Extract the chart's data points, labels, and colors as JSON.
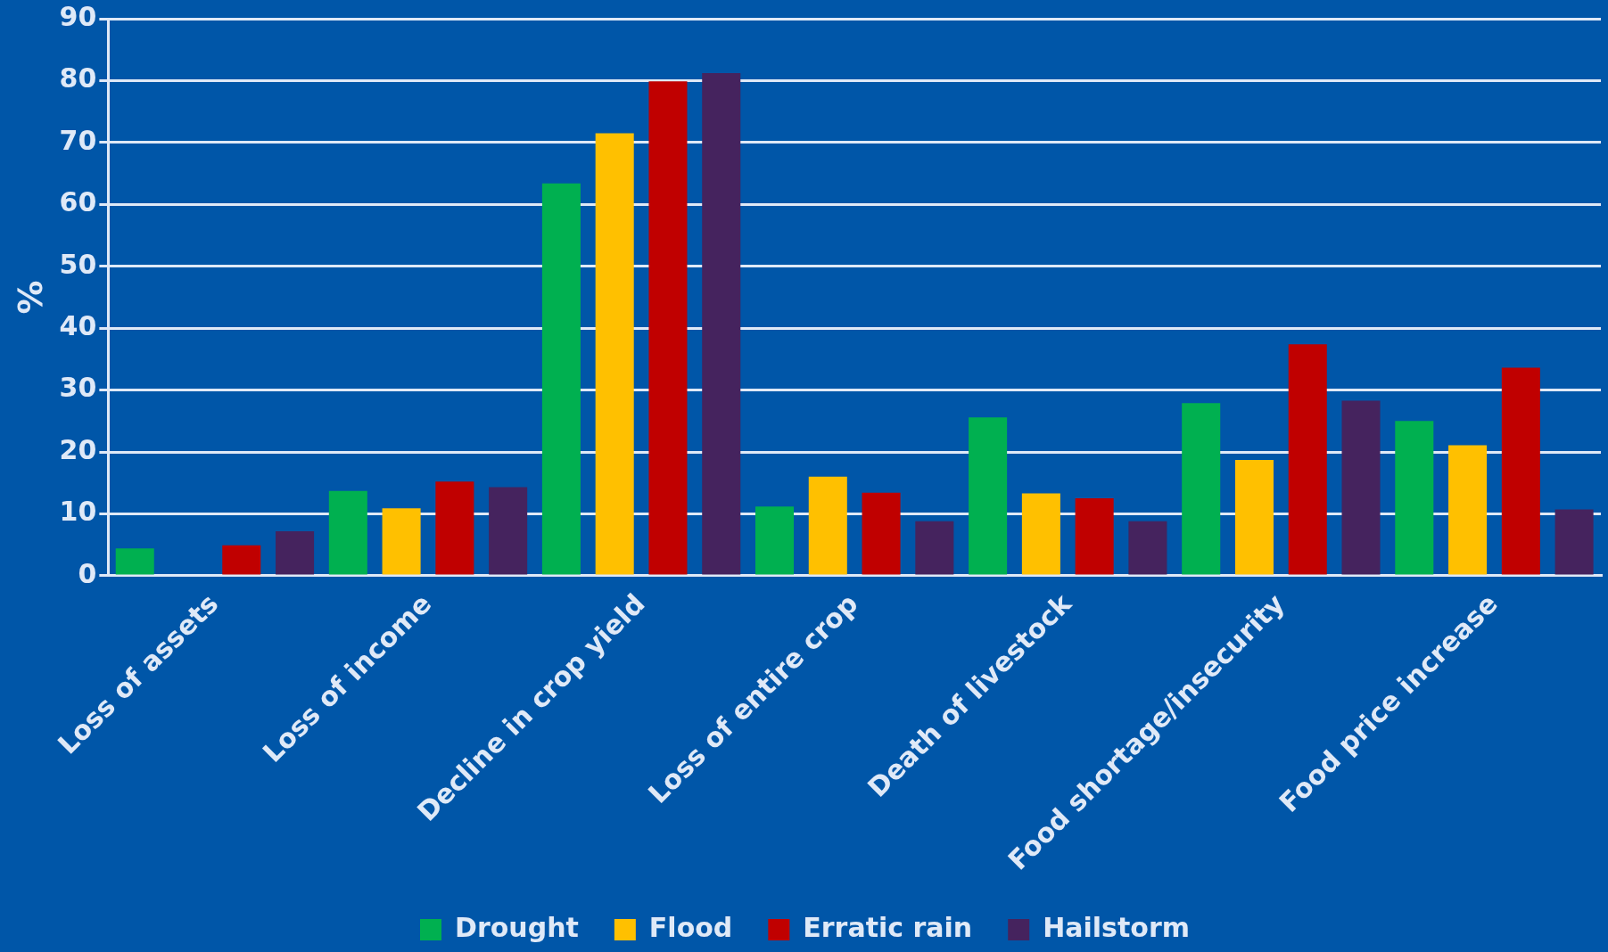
{
  "chart_data": {
    "type": "bar",
    "ylabel": "%",
    "categories": [
      "Loss of assets",
      "Loss of income",
      "Decline in crop yield",
      "Loss of entire crop",
      "Death of livestock",
      "Food shortage/insecurity",
      "Food price increase"
    ],
    "series": [
      {
        "name": "Drought",
        "color": "#00b050",
        "values": [
          4.4,
          13.7,
          63.4,
          11.2,
          25.6,
          27.9,
          25.0
        ]
      },
      {
        "name": "Flood",
        "color": "#ffc000",
        "values": [
          0,
          10.9,
          71.5,
          16.0,
          13.3,
          18.7,
          21.1
        ]
      },
      {
        "name": "Erratic rain",
        "color": "#c00000",
        "values": [
          4.9,
          15.2,
          79.9,
          13.4,
          12.5,
          37.4,
          33.6
        ]
      },
      {
        "name": "Hailstorm",
        "color": "#45235e",
        "values": [
          7.2,
          14.3,
          81.2,
          8.8,
          8.8,
          28.3,
          10.7
        ]
      }
    ],
    "ylim": [
      0,
      90
    ],
    "yticks": [
      0,
      10,
      20,
      30,
      40,
      50,
      60,
      70,
      80,
      90
    ],
    "grid": "y",
    "legend": "bottom"
  }
}
